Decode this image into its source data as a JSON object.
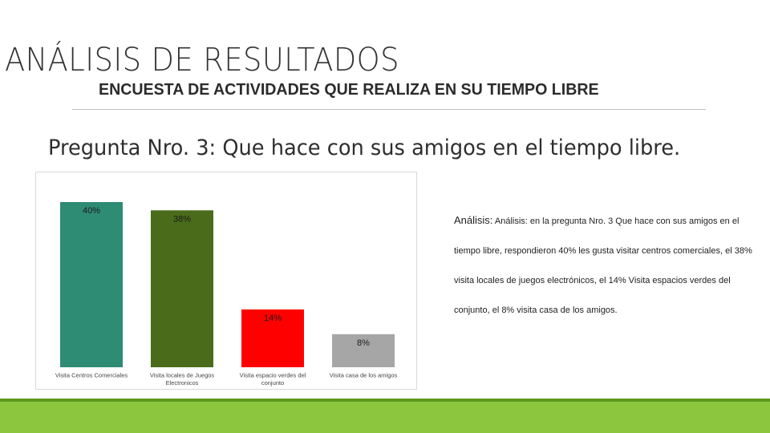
{
  "header": {
    "title": "ANÁLISIS DE RESULTADOS",
    "subtitle": "ENCUESTA DE ACTIVIDADES QUE REALIZA EN SU TIEMPO LIBRE"
  },
  "question": "Pregunta Nro. 3: Que hace con sus amigos en el tiempo libre.",
  "analysis": {
    "label": "Análisis:",
    "text": "Análisis: en la pregunta  Nro. 3 Que hace con sus amigos en el tiempo libre, respondieron 40% les gusta visitar centros comerciales, el 38% visita locales de juegos electrónicos, el 14% Visita espacios verdes del conjunto, el 8% visita casa de los amigos."
  },
  "colors": {
    "accent_bar": "#8cc63e",
    "accent_stripe": "#5f9a1f"
  },
  "chart_data": {
    "type": "bar",
    "categories": [
      "Visita Centros Comerciales",
      "Visita locales de Juegos Electronicos",
      "Visita espacio verdes del conjunto",
      "Visita casa de los amigos"
    ],
    "values": [
      40,
      38,
      14,
      8
    ],
    "data_labels": [
      "40%",
      "38%",
      "14%",
      "8%"
    ],
    "colors": [
      "#2e8b74",
      "#4a6b1a",
      "#ff0000",
      "#a6a6a6"
    ],
    "title": "",
    "xlabel": "",
    "ylabel": "",
    "ylim": [
      0,
      40
    ],
    "grid": false,
    "legend": "none"
  }
}
